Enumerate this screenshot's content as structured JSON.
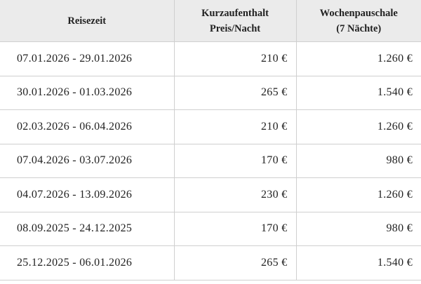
{
  "table": {
    "header": [
      "Reisezeit",
      [
        "Kurzaufenthalt",
        "Preis/Nacht"
      ],
      [
        "Wochenpauschale",
        "(7 Nächte)"
      ]
    ],
    "rows": [
      [
        "07.01.2026 - 29.01.2026",
        "210 €",
        "1.260 €"
      ],
      [
        "30.01.2026 - 01.03.2026",
        "265 €",
        "1.540 €"
      ],
      [
        "02.03.2026 - 06.04.2026",
        "210 €",
        "1.260 €"
      ],
      [
        "07.04.2026 - 03.07.2026",
        "170 €",
        "980 €"
      ],
      [
        "04.07.2026 - 13.09.2026",
        "230 €",
        "1.260 €"
      ],
      [
        "08.09.2025 - 24.12.2025",
        "170 €",
        "980 €"
      ],
      [
        "25.12.2025 - 06.01.2026",
        "265 €",
        "1.540 €"
      ]
    ]
  }
}
